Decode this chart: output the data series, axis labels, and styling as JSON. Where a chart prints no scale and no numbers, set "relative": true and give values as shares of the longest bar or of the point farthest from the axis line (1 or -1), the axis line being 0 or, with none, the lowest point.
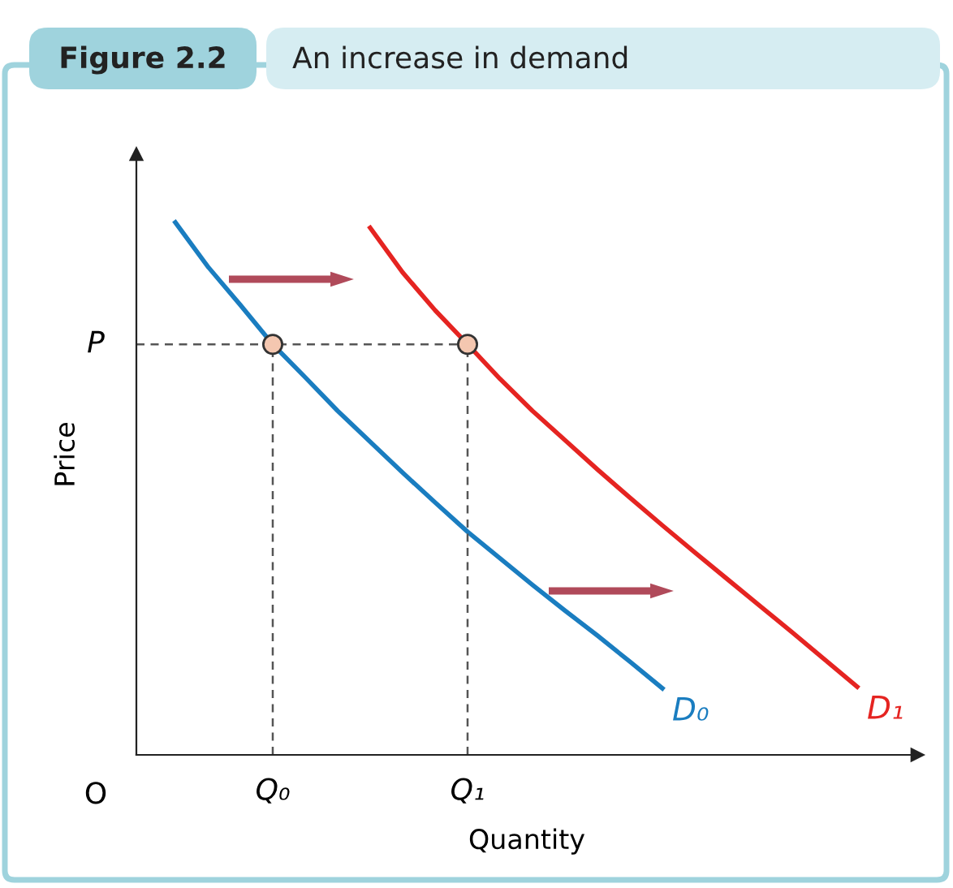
{
  "chart_data": {
    "type": "line",
    "title": "Figure 2.2",
    "subtitle": "An increase in demand",
    "xlabel": "Quantity",
    "ylabel": "Price",
    "relative": true,
    "categories": [
      null,
      null,
      null,
      null,
      "Q₀",
      null,
      null,
      null,
      null,
      null,
      "Q₁",
      null,
      null,
      null,
      null,
      null,
      null,
      null,
      null,
      null,
      null,
      null,
      null
    ],
    "annotations": [
      "O"
    ],
    "ref_lines": [
      {
        "axis": "y",
        "value": 0.771,
        "label": "P",
        "line_style": "dashed",
        "color": "#555555"
      },
      {
        "axis": "x",
        "value": "Q₀",
        "line_style": "dashed",
        "color": "#555555"
      },
      {
        "axis": "x",
        "value": "Q₁",
        "line_style": "dashed",
        "color": "#555555"
      }
    ],
    "series": [
      {
        "name": "D₀",
        "color": "#1a7dc0",
        "values": [
          null,
          1.0,
          0.917,
          0.845,
          0.771,
          0.709,
          0.646,
          0.588,
          0.53,
          0.474,
          0.419,
          0.369,
          0.319,
          0.271,
          0.224,
          0.175,
          0.125,
          null,
          null,
          null,
          null,
          null,
          null
        ]
      },
      {
        "name": "D₁",
        "color": "#e52421",
        "values": [
          null,
          null,
          null,
          null,
          null,
          null,
          null,
          0.99,
          0.906,
          0.835,
          0.771,
          0.706,
          0.646,
          0.591,
          0.536,
          0.483,
          0.431,
          0.38,
          0.33,
          0.28,
          0.23,
          0.179,
          0.128
        ]
      }
    ]
  }
}
